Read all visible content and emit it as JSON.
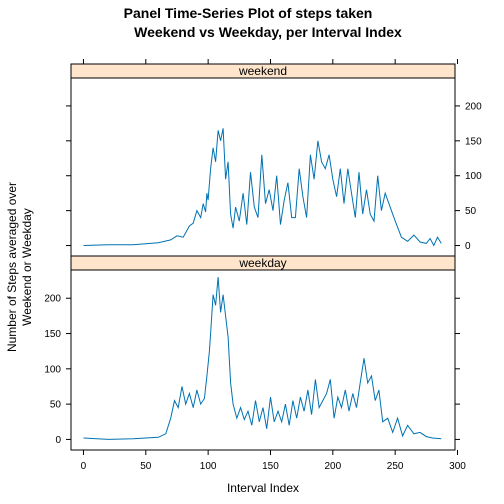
{
  "chart_data": {
    "type": "line",
    "title_line1": "Panel Time-Series Plot of steps taken",
    "title_line2": "Weekend vs Weekday, per Interval Index",
    "xlabel": "Interval Index",
    "ylabel_line1": "Number of Steps averaged over",
    "ylabel_line2": "Weekend or Weekday",
    "xlim": [
      -10,
      298
    ],
    "ylim": [
      -15,
      240
    ],
    "x_ticks": [
      0,
      50,
      100,
      150,
      200,
      250,
      300
    ],
    "y_ticks": [
      0,
      50,
      100,
      150,
      200
    ],
    "line_color": "#0072B2",
    "strip_color": "#FFE5CC",
    "panels": [
      {
        "name": "weekend",
        "x": [
          0,
          20,
          40,
          60,
          70,
          75,
          80,
          85,
          88,
          91,
          94,
          96,
          98,
          99,
          100,
          102,
          104,
          106,
          108,
          110,
          112,
          114,
          116,
          118,
          120,
          122,
          125,
          128,
          131,
          134,
          137,
          140,
          143,
          146,
          149,
          152,
          155,
          158,
          161,
          164,
          167,
          170,
          173,
          176,
          179,
          182,
          185,
          188,
          191,
          194,
          197,
          200,
          203,
          206,
          209,
          212,
          215,
          218,
          221,
          224,
          227,
          230,
          233,
          236,
          239,
          242,
          245,
          250,
          255,
          260,
          265,
          270,
          275,
          278,
          281,
          284,
          287
        ],
        "y": [
          0,
          1,
          1,
          4,
          8,
          14,
          12,
          28,
          32,
          50,
          40,
          60,
          48,
          75,
          65,
          110,
          140,
          120,
          165,
          150,
          168,
          95,
          120,
          45,
          25,
          55,
          35,
          75,
          30,
          105,
          55,
          40,
          130,
          60,
          80,
          50,
          100,
          30,
          65,
          90,
          40,
          40,
          110,
          70,
          40,
          130,
          95,
          150,
          120,
          110,
          130,
          95,
          70,
          110,
          60,
          110,
          75,
          40,
          105,
          45,
          80,
          45,
          35,
          100,
          50,
          75,
          60,
          35,
          12,
          6,
          15,
          5,
          3,
          10,
          0,
          12,
          3
        ]
      },
      {
        "name": "weekday",
        "x": [
          0,
          20,
          40,
          60,
          66,
          70,
          73,
          76,
          79,
          82,
          85,
          88,
          91,
          94,
          97,
          99,
          101,
          102,
          104,
          106,
          108,
          110,
          112,
          114,
          116,
          118,
          120,
          123,
          126,
          129,
          132,
          135,
          138,
          141,
          144,
          147,
          150,
          153,
          156,
          159,
          162,
          165,
          168,
          171,
          174,
          177,
          180,
          183,
          186,
          189,
          192,
          195,
          198,
          201,
          204,
          207,
          210,
          213,
          216,
          219,
          222,
          225,
          228,
          231,
          234,
          237,
          240,
          244,
          248,
          252,
          256,
          260,
          265,
          270,
          275,
          280,
          287
        ],
        "y": [
          2,
          0,
          1,
          3,
          8,
          30,
          55,
          45,
          75,
          50,
          65,
          45,
          70,
          50,
          58,
          90,
          125,
          150,
          205,
          190,
          230,
          180,
          205,
          175,
          145,
          80,
          50,
          30,
          45,
          28,
          40,
          20,
          55,
          25,
          45,
          15,
          60,
          25,
          40,
          25,
          50,
          20,
          55,
          30,
          60,
          40,
          70,
          35,
          85,
          45,
          55,
          65,
          85,
          30,
          60,
          45,
          70,
          40,
          65,
          45,
          80,
          115,
          80,
          90,
          55,
          70,
          25,
          30,
          10,
          30,
          5,
          20,
          8,
          10,
          4,
          2,
          1
        ]
      }
    ]
  }
}
